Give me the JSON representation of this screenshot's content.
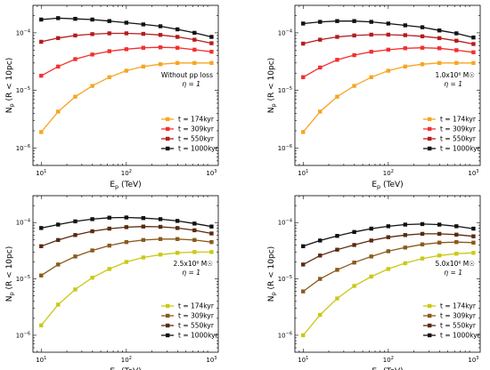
{
  "chart_data": [
    {
      "type": "line",
      "xscale": "log",
      "yscale": "log",
      "xlim": [
        8,
        1200
      ],
      "ylim": [
        5e-07,
        0.0003
      ],
      "xlabel_main": "E",
      "xlabel_sub": "p",
      "xlabel_rest": " (TeV)",
      "ylabel_main": "N",
      "ylabel_sub": "p",
      "ylabel_rest": " (R < 10pc)",
      "xticks": [
        {
          "v": 10,
          "label": "10",
          "exp": "1"
        },
        {
          "v": 100,
          "label": "10",
          "exp": "2"
        },
        {
          "v": 1000,
          "label": "10",
          "exp": "3"
        }
      ],
      "yticks": [
        {
          "v": 1e-06,
          "label": "10",
          "exp": "−6"
        },
        {
          "v": 1e-05,
          "label": "10",
          "exp": "−5"
        },
        {
          "v": 0.0001,
          "label": "10",
          "exp": "−4"
        }
      ],
      "annotation_line1": "Without pp loss",
      "annotation_line2": "η = 1",
      "legend_position": "lower right",
      "x": [
        10,
        15.8,
        25.1,
        39.8,
        63.1,
        100,
        158,
        251,
        398,
        631,
        1000
      ],
      "series": [
        {
          "name": "t = 174kyr",
          "color": "#f5a623",
          "values": [
            1.9e-06,
            4.3e-06,
            7.8e-06,
            1.2e-05,
            1.7e-05,
            2.2e-05,
            2.6e-05,
            2.85e-05,
            3e-05,
            3e-05,
            3e-05
          ]
        },
        {
          "name": "t = 309kyr",
          "color": "#f23030",
          "values": [
            1.8e-05,
            2.6e-05,
            3.5e-05,
            4.2e-05,
            4.8e-05,
            5.2e-05,
            5.5e-05,
            5.6e-05,
            5.5e-05,
            5.1e-05,
            4.7e-05
          ]
        },
        {
          "name": "t = 550kyr",
          "color": "#b51c1c",
          "values": [
            7e-05,
            8.1e-05,
            9e-05,
            9.5e-05,
            9.8e-05,
            9.8e-05,
            9.6e-05,
            9.2e-05,
            8.5e-05,
            7.6e-05,
            6.6e-05
          ]
        },
        {
          "name": "t = 1000kyr",
          "color": "#111111",
          "values": [
            0.00017,
            0.00018,
            0.000175,
            0.00017,
            0.00016,
            0.00015,
            0.00014,
            0.00013,
            0.000115,
            0.0001,
            8.5e-05
          ]
        }
      ]
    },
    {
      "type": "line",
      "xscale": "log",
      "yscale": "log",
      "xlim": [
        8,
        1200
      ],
      "ylim": [
        5e-07,
        0.0003
      ],
      "xlabel_main": "E",
      "xlabel_sub": "p",
      "xlabel_rest": " (TeV)",
      "ylabel_main": "N",
      "ylabel_sub": "p",
      "ylabel_rest": " (R < 10pc)",
      "xticks": [
        {
          "v": 10,
          "label": "10",
          "exp": "1"
        },
        {
          "v": 100,
          "label": "10",
          "exp": "2"
        },
        {
          "v": 1000,
          "label": "10",
          "exp": "3"
        }
      ],
      "yticks": [
        {
          "v": 1e-06,
          "label": "10",
          "exp": "−6"
        },
        {
          "v": 1e-05,
          "label": "10",
          "exp": "−5"
        },
        {
          "v": 0.0001,
          "label": "10",
          "exp": "−4"
        }
      ],
      "annotation_line1": "1.0x10⁶ M☉",
      "annotation_line2": "η = 1",
      "legend_position": "lower right",
      "x": [
        10,
        15.8,
        25.1,
        39.8,
        63.1,
        100,
        158,
        251,
        398,
        631,
        1000
      ],
      "series": [
        {
          "name": "t = 174kyr",
          "color": "#f5a623",
          "values": [
            1.9e-06,
            4.3e-06,
            7.8e-06,
            1.2e-05,
            1.7e-05,
            2.2e-05,
            2.6e-05,
            2.85e-05,
            3e-05,
            3e-05,
            3e-05
          ]
        },
        {
          "name": "t = 309kyr",
          "color": "#f23030",
          "values": [
            1.7e-05,
            2.5e-05,
            3.4e-05,
            4.1e-05,
            4.7e-05,
            5.1e-05,
            5.4e-05,
            5.5e-05,
            5.4e-05,
            5e-05,
            4.6e-05
          ]
        },
        {
          "name": "t = 550kyr",
          "color": "#b51c1c",
          "values": [
            6.5e-05,
            7.6e-05,
            8.5e-05,
            9e-05,
            9.3e-05,
            9.3e-05,
            9.1e-05,
            8.7e-05,
            8.1e-05,
            7.3e-05,
            6.4e-05
          ]
        },
        {
          "name": "t = 1000kyr",
          "color": "#111111",
          "values": [
            0.000145,
            0.000155,
            0.00016,
            0.00016,
            0.000155,
            0.000145,
            0.000135,
            0.000125,
            0.00011,
            9.8e-05,
            8.3e-05
          ]
        }
      ]
    },
    {
      "type": "line",
      "xscale": "log",
      "yscale": "log",
      "xlim": [
        8,
        1200
      ],
      "ylim": [
        5e-07,
        0.0003
      ],
      "xlabel_main": "E",
      "xlabel_sub": "p",
      "xlabel_rest": " (TeV)",
      "ylabel_main": "N",
      "ylabel_sub": "p",
      "ylabel_rest": " (R < 10pc)",
      "xticks": [
        {
          "v": 10,
          "label": "10",
          "exp": "1"
        },
        {
          "v": 100,
          "label": "10",
          "exp": "2"
        },
        {
          "v": 1000,
          "label": "10",
          "exp": "3"
        }
      ],
      "yticks": [
        {
          "v": 1e-06,
          "label": "10",
          "exp": "−6"
        },
        {
          "v": 1e-05,
          "label": "10",
          "exp": "−5"
        },
        {
          "v": 0.0001,
          "label": "10",
          "exp": "−4"
        }
      ],
      "annotation_line1": "2.5x10⁶ M☉",
      "annotation_line2": "η = 1",
      "legend_position": "lower right",
      "x": [
        10,
        15.8,
        25.1,
        39.8,
        63.1,
        100,
        158,
        251,
        398,
        631,
        1000
      ],
      "series": [
        {
          "name": "t = 174kyr",
          "color": "#c9c917",
          "values": [
            1.5e-06,
            3.5e-06,
            6.5e-06,
            1.05e-05,
            1.5e-05,
            2e-05,
            2.4e-05,
            2.7e-05,
            2.9e-05,
            3e-05,
            3e-05
          ]
        },
        {
          "name": "t = 309kyr",
          "color": "#8a5a1c",
          "values": [
            1.15e-05,
            1.8e-05,
            2.5e-05,
            3.2e-05,
            3.9e-05,
            4.5e-05,
            4.9e-05,
            5.1e-05,
            5.1e-05,
            4.9e-05,
            4.5e-05
          ]
        },
        {
          "name": "t = 550kyr",
          "color": "#5a2a10",
          "values": [
            3.8e-05,
            4.9e-05,
            6e-05,
            7e-05,
            7.8e-05,
            8.3e-05,
            8.5e-05,
            8.4e-05,
            8e-05,
            7.3e-05,
            6.4e-05
          ]
        },
        {
          "name": "t = 1000kyr",
          "color": "#111111",
          "values": [
            8e-05,
            9.2e-05,
            0.000105,
            0.000115,
            0.000122,
            0.000123,
            0.00012,
            0.000115,
            0.000107,
            9.6e-05,
            8.5e-05
          ]
        }
      ]
    },
    {
      "type": "line",
      "xscale": "log",
      "yscale": "log",
      "xlim": [
        8,
        1200
      ],
      "ylim": [
        5e-07,
        0.0003
      ],
      "xlabel_main": "E",
      "xlabel_sub": "p",
      "xlabel_rest": " (TeV)",
      "ylabel_main": "N",
      "ylabel_sub": "p",
      "ylabel_rest": " (R < 10pc)",
      "xticks": [
        {
          "v": 10,
          "label": "10",
          "exp": "1"
        },
        {
          "v": 100,
          "label": "10",
          "exp": "2"
        },
        {
          "v": 1000,
          "label": "10",
          "exp": "3"
        }
      ],
      "yticks": [
        {
          "v": 1e-06,
          "label": "10",
          "exp": "−6"
        },
        {
          "v": 1e-05,
          "label": "10",
          "exp": "−5"
        },
        {
          "v": 0.0001,
          "label": "10",
          "exp": "−4"
        }
      ],
      "annotation_line1": "5.0x10⁶ M☉",
      "annotation_line2": "η = 1",
      "legend_position": "lower right",
      "x": [
        10,
        15.8,
        25.1,
        39.8,
        63.1,
        100,
        158,
        251,
        398,
        631,
        1000
      ],
      "series": [
        {
          "name": "t = 174kyr",
          "color": "#c9c917",
          "values": [
            1e-06,
            2.3e-06,
            4.5e-06,
            7.5e-06,
            1.1e-05,
            1.5e-05,
            1.9e-05,
            2.3e-05,
            2.6e-05,
            2.8e-05,
            2.9e-05
          ]
        },
        {
          "name": "t = 309kyr",
          "color": "#8a5a1c",
          "values": [
            6e-06,
            1e-05,
            1.45e-05,
            1.95e-05,
            2.5e-05,
            3.1e-05,
            3.6e-05,
            4.1e-05,
            4.4e-05,
            4.5e-05,
            4.4e-05
          ]
        },
        {
          "name": "t = 550kyr",
          "color": "#5a2a10",
          "values": [
            1.8e-05,
            2.6e-05,
            3.3e-05,
            4e-05,
            4.8e-05,
            5.5e-05,
            6e-05,
            6.3e-05,
            6.3e-05,
            6.1e-05,
            5.7e-05
          ]
        },
        {
          "name": "t = 1000kyr",
          "color": "#111111",
          "values": [
            3.8e-05,
            4.8e-05,
            5.8e-05,
            6.8e-05,
            7.8e-05,
            8.6e-05,
            9.2e-05,
            9.4e-05,
            9.2e-05,
            8.6e-05,
            7.8e-05
          ]
        }
      ]
    }
  ]
}
